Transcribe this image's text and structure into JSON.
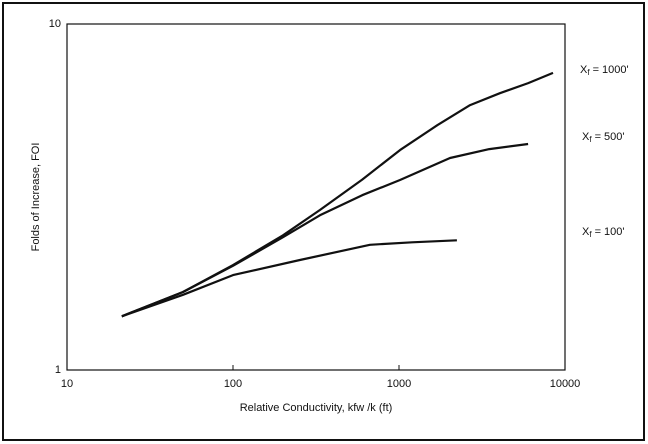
{
  "chart_data": {
    "type": "line",
    "x_label": "Relative Conductivity, kfw /k (ft)",
    "y_label": "Folds of Increase, FOI",
    "xlog": true,
    "ylog": true,
    "xlim": [
      10,
      10000
    ],
    "ylim": [
      1,
      10
    ],
    "xticks": [
      10,
      100,
      1000,
      10000
    ],
    "yticks": [
      1,
      10
    ],
    "series": [
      {
        "label": {
          "symbol": "X",
          "subscript": "f",
          "text": "= 1000'"
        },
        "color": "#111111",
        "x": [
          21.4,
          50,
          100,
          200,
          334,
          600,
          1014,
          1700,
          2680,
          4055,
          6000,
          8470
        ],
        "values": [
          1.43,
          1.68,
          2.01,
          2.45,
          2.9,
          3.55,
          4.32,
          5.1,
          5.83,
          6.31,
          6.75,
          7.22
        ]
      },
      {
        "label": {
          "symbol": "X",
          "subscript": "f",
          "text": "= 500'"
        },
        "color": "#111111",
        "x": [
          21.4,
          50,
          100,
          200,
          334,
          600,
          1014,
          2030,
          3500,
          5990
        ],
        "values": [
          1.43,
          1.68,
          2.0,
          2.42,
          2.8,
          3.2,
          3.54,
          4.1,
          4.35,
          4.5
        ]
      },
      {
        "label": {
          "symbol": "X",
          "subscript": "f",
          "text": "= 100'"
        },
        "color": "#111111",
        "x": [
          21.4,
          50,
          100,
          253,
          668,
          1200,
          2233
        ],
        "values": [
          1.43,
          1.65,
          1.88,
          2.08,
          2.3,
          2.34,
          2.37
        ]
      }
    ]
  }
}
